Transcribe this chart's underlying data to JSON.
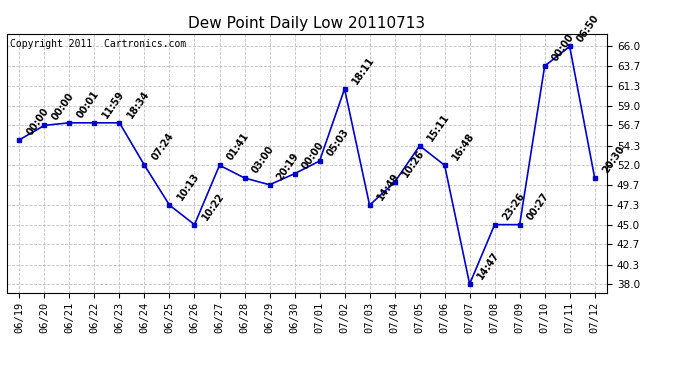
{
  "title": "Dew Point Daily Low 20110713",
  "copyright": "Copyright 2011  Cartronics.com",
  "x_labels": [
    "06/19",
    "06/20",
    "06/21",
    "06/22",
    "06/23",
    "06/24",
    "06/25",
    "06/26",
    "06/27",
    "06/28",
    "06/29",
    "06/30",
    "07/01",
    "07/02",
    "07/03",
    "07/04",
    "07/05",
    "07/06",
    "07/07",
    "07/08",
    "07/09",
    "07/10",
    "07/11",
    "07/12"
  ],
  "y_values": [
    55.0,
    56.7,
    57.0,
    57.0,
    57.0,
    52.0,
    47.3,
    45.0,
    52.0,
    50.5,
    49.7,
    51.0,
    52.5,
    61.0,
    47.3,
    50.0,
    54.3,
    52.0,
    38.0,
    45.0,
    45.0,
    63.7,
    66.0,
    50.5
  ],
  "point_labels": [
    "00:00",
    "00:00",
    "00:01",
    "11:59",
    "18:34",
    "07:24",
    "10:13",
    "10:22",
    "01:41",
    "03:00",
    "20:19",
    "00:00",
    "05:03",
    "18:11",
    "14:49",
    "10:26",
    "15:11",
    "16:48",
    "14:47",
    "23:26",
    "00:27",
    "00:00",
    "06:50",
    "20:30"
  ],
  "y_ticks": [
    38.0,
    40.3,
    42.7,
    45.0,
    47.3,
    49.7,
    52.0,
    54.3,
    56.7,
    59.0,
    61.3,
    63.7,
    66.0
  ],
  "ylim": [
    37.0,
    67.5
  ],
  "line_color": "#0000cc",
  "marker_color": "#0000cc",
  "bg_color": "#ffffff",
  "grid_color": "#bbbbbb",
  "title_fontsize": 11,
  "label_fontsize": 7,
  "tick_fontsize": 7.5,
  "copyright_fontsize": 7
}
